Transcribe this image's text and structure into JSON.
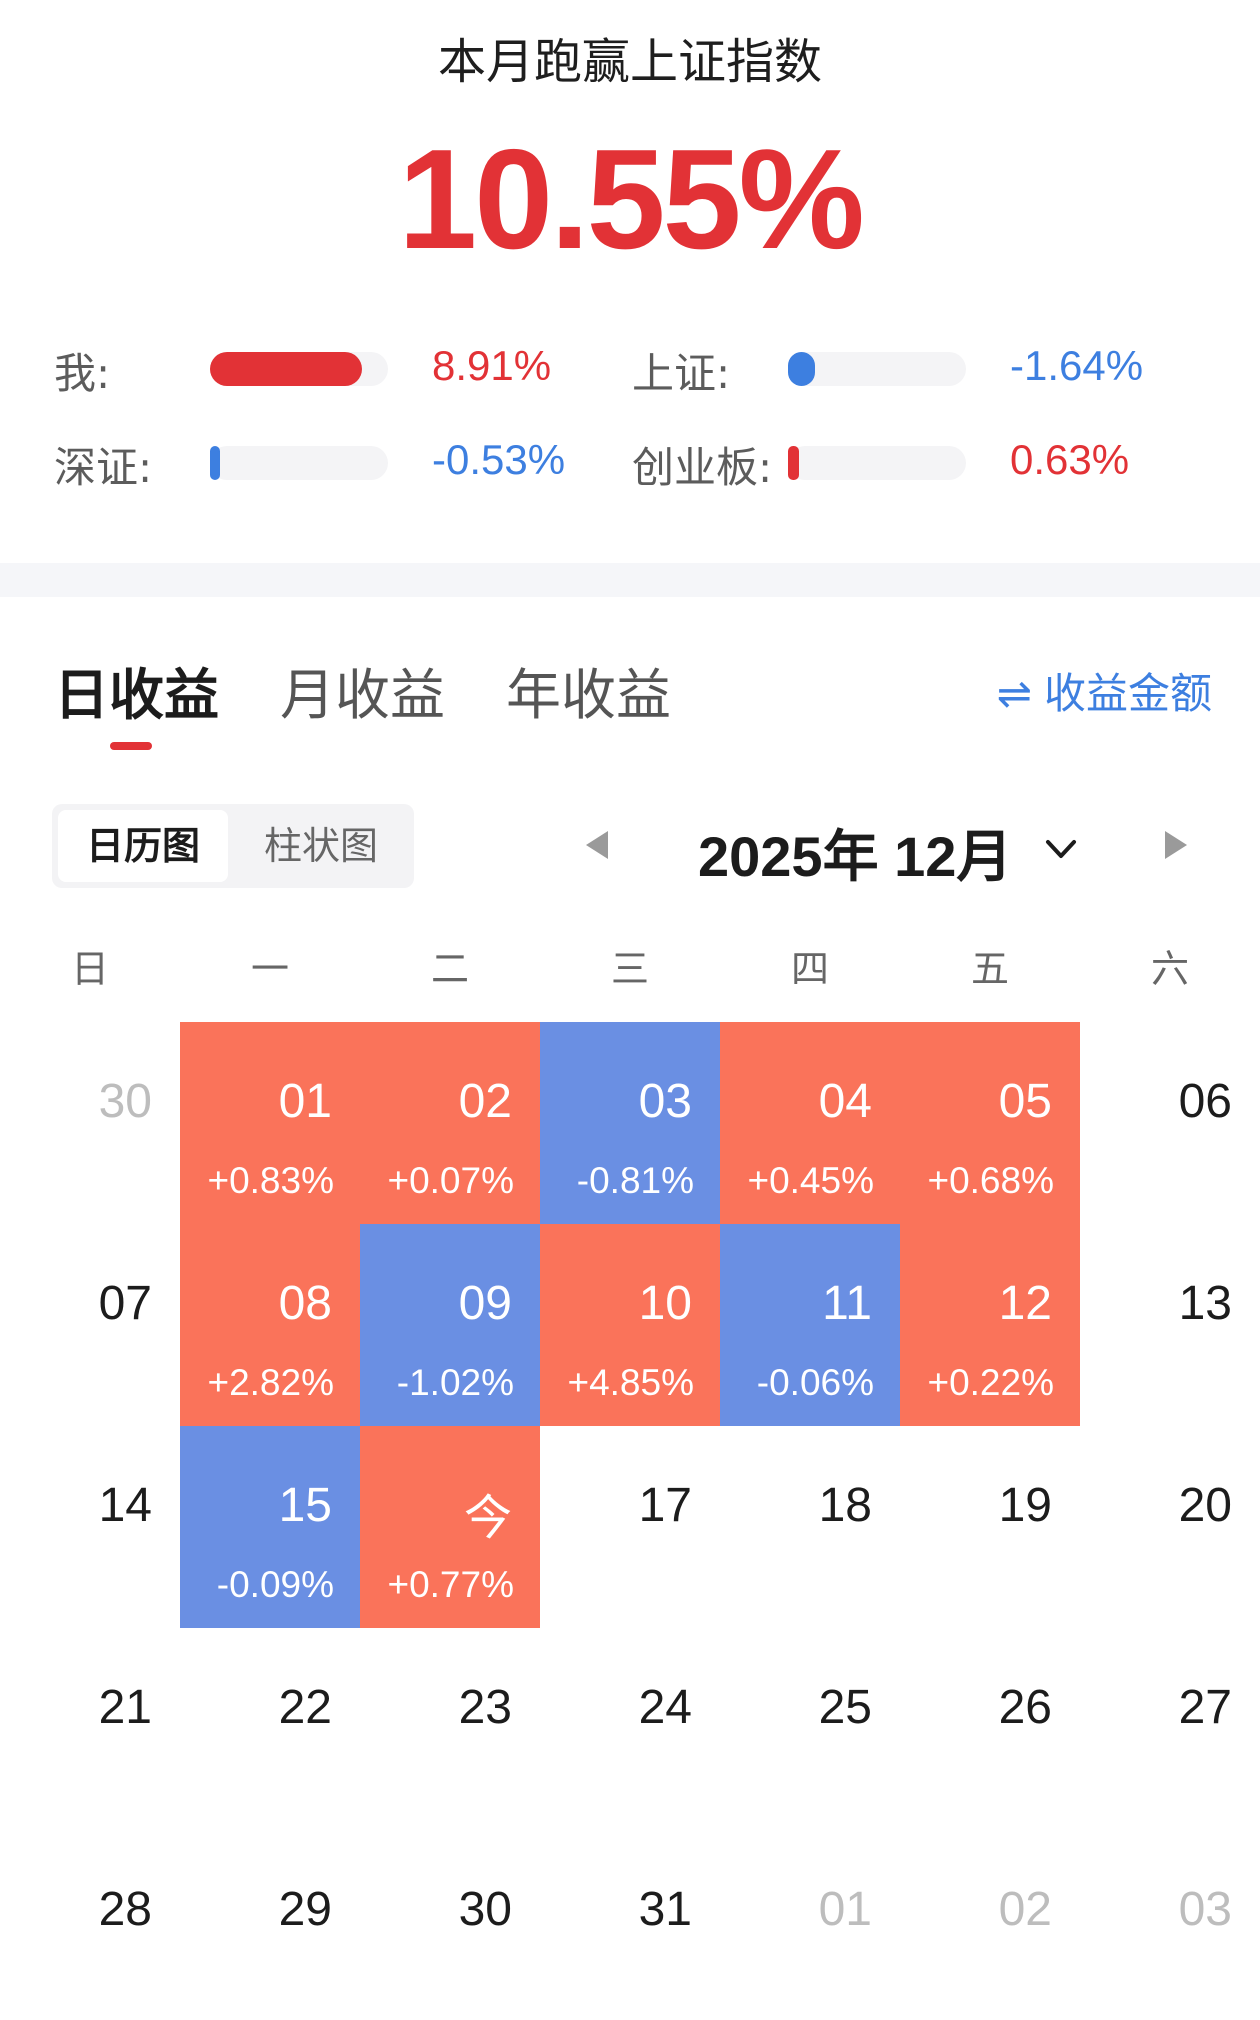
{
  "header": {
    "title": "本月跑赢上证指数",
    "outperform": "10.55%"
  },
  "comparison": [
    {
      "label": "我:",
      "value": "8.91%",
      "color": "#e23236",
      "bar_fraction": 1.0
    },
    {
      "label": "上证:",
      "value": "-1.64%",
      "color": "#3d7fe0",
      "bar_fraction": 0.18
    },
    {
      "label": "深证:",
      "value": "-0.53%",
      "color": "#3d7fe0",
      "bar_fraction": 0.06
    },
    {
      "label": "创业板:",
      "value": "0.63%",
      "color": "#e23236",
      "bar_fraction": 0.07
    }
  ],
  "tabs": [
    {
      "label": "日收益",
      "active": true
    },
    {
      "label": "月收益",
      "active": false
    },
    {
      "label": "年收益",
      "active": false
    }
  ],
  "toggle": {
    "icon": "swap-arrows-icon",
    "label": "收益金额"
  },
  "view_switch": {
    "active": "日历图",
    "inactive": "柱状图"
  },
  "month_nav": {
    "label": "2025年 12月"
  },
  "weekdays": [
    "日",
    "一",
    "二",
    "三",
    "四",
    "五",
    "六"
  ],
  "colors": {
    "gain": "#fa735a",
    "loss": "#6a8fe3",
    "accent": "#e23236",
    "link": "#3d7fe0"
  },
  "calendar": [
    [
      {
        "day": "30",
        "muted": true
      },
      {
        "day": "01",
        "ret": "+0.83%"
      },
      {
        "day": "02",
        "ret": "+0.07%"
      },
      {
        "day": "03",
        "ret": "-0.81%"
      },
      {
        "day": "04",
        "ret": "+0.45%"
      },
      {
        "day": "05",
        "ret": "+0.68%"
      },
      {
        "day": "06"
      }
    ],
    [
      {
        "day": "07"
      },
      {
        "day": "08",
        "ret": "+2.82%"
      },
      {
        "day": "09",
        "ret": "-1.02%"
      },
      {
        "day": "10",
        "ret": "+4.85%"
      },
      {
        "day": "11",
        "ret": "-0.06%"
      },
      {
        "day": "12",
        "ret": "+0.22%"
      },
      {
        "day": "13"
      }
    ],
    [
      {
        "day": "14"
      },
      {
        "day": "15",
        "ret": "-0.09%"
      },
      {
        "day": "今",
        "ret": "+0.77%"
      },
      {
        "day": "17"
      },
      {
        "day": "18"
      },
      {
        "day": "19"
      },
      {
        "day": "20"
      }
    ],
    [
      {
        "day": "21"
      },
      {
        "day": "22"
      },
      {
        "day": "23"
      },
      {
        "day": "24"
      },
      {
        "day": "25"
      },
      {
        "day": "26"
      },
      {
        "day": "27"
      }
    ],
    [
      {
        "day": "28"
      },
      {
        "day": "29"
      },
      {
        "day": "30"
      },
      {
        "day": "31"
      },
      {
        "day": "01",
        "muted": true
      },
      {
        "day": "02",
        "muted": true
      },
      {
        "day": "03",
        "muted": true
      }
    ]
  ]
}
